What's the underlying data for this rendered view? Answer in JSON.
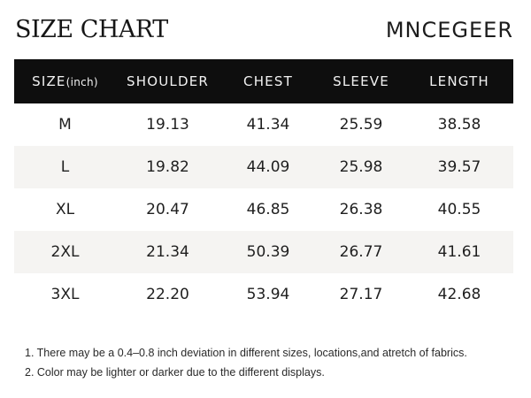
{
  "title": "SIZE CHART",
  "brand": "MNCEGEER",
  "table": {
    "headers": {
      "size": "SIZE",
      "size_unit": "(inch)",
      "shoulder": "SHOULDER",
      "chest": "CHEST",
      "sleeve": "SLEEVE",
      "length": "LENGTH"
    },
    "rows": [
      {
        "size": "M",
        "shoulder": "19.13",
        "chest": "41.34",
        "sleeve": "25.59",
        "length": "38.58"
      },
      {
        "size": "L",
        "shoulder": "19.82",
        "chest": "44.09",
        "sleeve": "25.98",
        "length": "39.57"
      },
      {
        "size": "XL",
        "shoulder": "20.47",
        "chest": "46.85",
        "sleeve": "26.38",
        "length": "40.55"
      },
      {
        "size": "2XL",
        "shoulder": "21.34",
        "chest": "50.39",
        "sleeve": "26.77",
        "length": "41.61"
      },
      {
        "size": "3XL",
        "shoulder": "22.20",
        "chest": "53.94",
        "sleeve": "27.17",
        "length": "42.68"
      }
    ]
  },
  "notes": [
    "1. There may be a 0.4–0.8 inch deviation in different sizes, locations,and atretch of fabrics.",
    "2. Color may be lighter or darker due to the different displays."
  ],
  "colors": {
    "header_bg": "#0e0e0e",
    "header_text": "#f2f2f2",
    "alt_row_bg": "#f5f4f2"
  }
}
